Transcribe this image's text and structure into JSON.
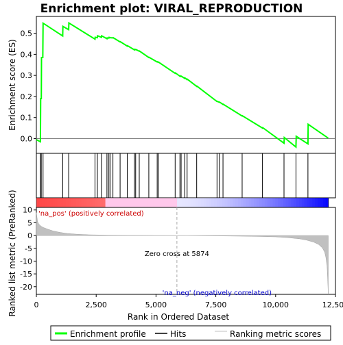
{
  "chart_data": {
    "type": "line",
    "title": "Enrichment plot: VIRAL_REPRODUCTION",
    "top_panel": {
      "ylabel": "Enrichment score (ES)",
      "ylim": [
        -0.07,
        0.58
      ],
      "yticks": [
        0.0,
        0.1,
        0.2,
        0.3,
        0.4,
        0.5
      ],
      "ytick_labels": [
        "0.0",
        "0.1",
        "0.2",
        "0.3",
        "0.4",
        "0.5"
      ],
      "series": [
        {
          "name": "Enrichment profile",
          "color": "#00ff00",
          "x": [
            0,
            170,
            180,
            205,
            215,
            270,
            280,
            1100,
            1110,
            1350,
            1360,
            2450,
            2460,
            2550,
            2560,
            2720,
            2730,
            2950,
            2960,
            3030,
            3040,
            3080,
            3090,
            3200,
            3210,
            3500,
            3510,
            3800,
            3810,
            4100,
            4110,
            4150,
            4160,
            4300,
            4310,
            4700,
            4710,
            5050,
            5060,
            5100,
            5110,
            5800,
            5810,
            6000,
            6010,
            6050,
            6060,
            6200,
            6210,
            6300,
            6310,
            6700,
            6710,
            7550,
            7560,
            7650,
            7660,
            7800,
            7810,
            8600,
            8610,
            9450,
            9460,
            10350,
            10360,
            10850,
            10860,
            11350,
            11360,
            12200
          ],
          "y": [
            -0.005,
            -0.015,
            0.19,
            0.19,
            0.385,
            0.385,
            0.548,
            0.487,
            0.533,
            0.517,
            0.549,
            0.472,
            0.481,
            0.479,
            0.488,
            0.481,
            0.488,
            0.474,
            0.478,
            0.477,
            0.481,
            0.48,
            0.479,
            0.478,
            0.479,
            0.459,
            0.46,
            0.439,
            0.441,
            0.421,
            0.424,
            0.422,
            0.423,
            0.415,
            0.416,
            0.385,
            0.386,
            0.364,
            0.365,
            0.362,
            0.363,
            0.31,
            0.312,
            0.296,
            0.298,
            0.295,
            0.296,
            0.286,
            0.288,
            0.28,
            0.282,
            0.248,
            0.249,
            0.176,
            0.177,
            0.172,
            0.173,
            0.162,
            0.163,
            0.107,
            0.108,
            0.05,
            0.052,
            -0.022,
            0.005,
            -0.04,
            0.011,
            -0.025,
            0.068,
            0.002
          ]
        }
      ]
    },
    "hits_panel": {
      "hit_positions": [
        170,
        205,
        280,
        1100,
        1350,
        2450,
        2550,
        2720,
        2950,
        3030,
        3080,
        3200,
        3500,
        3800,
        4100,
        4150,
        4300,
        4700,
        5050,
        5100,
        5800,
        6000,
        6050,
        6200,
        6300,
        6700,
        7550,
        7650,
        7800,
        8600,
        9450,
        10350,
        10850,
        11350
      ]
    },
    "bottom_panel": {
      "ylabel": "Ranked list metric (PreRanked)",
      "xlabel": "Rank in Ordered Dataset",
      "ylim": [
        -23,
        11
      ],
      "yticks": [
        10,
        5,
        0,
        -5,
        -10,
        -15,
        -20
      ],
      "ytick_labels": [
        "10",
        "5",
        "0",
        "-5",
        "-10",
        "-15",
        "-20"
      ],
      "xlim": [
        0,
        12500
      ],
      "xticks": [
        0,
        2500,
        5000,
        7500,
        10000,
        12500
      ],
      "xtick_labels": [
        "0",
        "2,500",
        "5,000",
        "7,500",
        "10,000",
        "12,500"
      ],
      "metric_x": [
        0,
        50,
        100,
        200,
        300,
        500,
        700,
        1000,
        1300,
        1700,
        2200,
        3000,
        4000,
        5000,
        5874,
        7000,
        8000,
        9000,
        10000,
        10500,
        11000,
        11300,
        11600,
        11800,
        11950,
        12050,
        12100,
        12150,
        12180,
        12200
      ],
      "metric_y": [
        9,
        5.5,
        4.5,
        3.6,
        3.1,
        2.4,
        1.8,
        1.2,
        0.8,
        0.5,
        0.3,
        0.15,
        0.08,
        0.03,
        0,
        -0.1,
        -0.2,
        -0.3,
        -0.5,
        -0.8,
        -1.3,
        -1.8,
        -2.6,
        -3.5,
        -4.8,
        -6.5,
        -8.5,
        -12,
        -18,
        -23
      ],
      "zero_cross_label": "Zero cross at 5874",
      "zero_cross_x": 5874,
      "pos_label": "'na_pos' (positively correlated)",
      "neg_label": "'na_neg' (negatively correlated)"
    },
    "legend": [
      {
        "label": "Enrichment profile",
        "color": "#00ff00"
      },
      {
        "label": "Hits",
        "color": "#000000"
      },
      {
        "label": "Ranking metric scores",
        "color": "#c0c0c0"
      }
    ],
    "colors": {
      "profile": "#00ff00",
      "hits": "#000000",
      "metric_fill": "#c0c0c0",
      "pos_label": "#cc0000",
      "neg_label": "#0000cc"
    }
  }
}
